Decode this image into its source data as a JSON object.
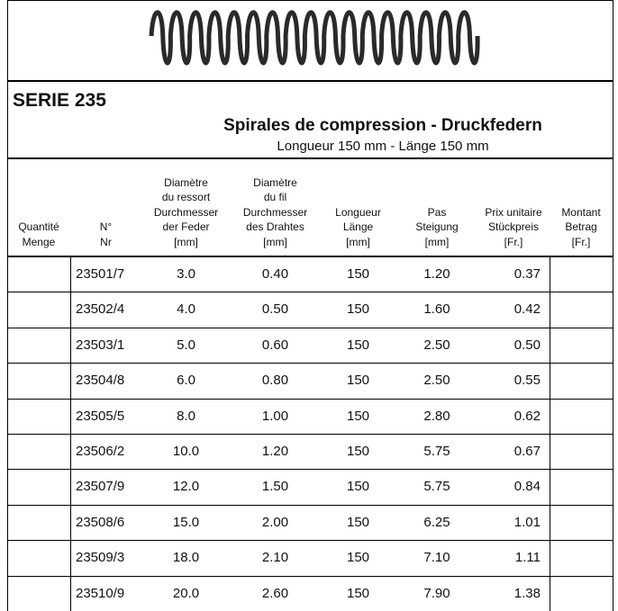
{
  "header": {
    "serie": "SERIE 235",
    "title": "Spirales de compression - Druckfedern",
    "subtitle": "Longueur 150 mm - Länge 150 mm"
  },
  "table": {
    "columns": [
      [
        "Quantité",
        "Menge"
      ],
      [
        "N°",
        "Nr"
      ],
      [
        "Diamètre",
        "du ressort",
        "Durchmesser",
        "der Feder",
        "[mm]"
      ],
      [
        "Diamètre",
        "du fil",
        "Durchmesser",
        "des Drahtes",
        "[mm]"
      ],
      [
        "Longueur",
        "Länge",
        "[mm]"
      ],
      [
        "Pas",
        "Steigung",
        "[mm]"
      ],
      [
        "Prix unitaire",
        "Stückpreis",
        "[Fr.]"
      ],
      [
        "Montant",
        "Betrag",
        "[Fr.]"
      ]
    ],
    "rows": [
      [
        "23501/7",
        "3.0",
        "0.40",
        "150",
        "1.20",
        "0.37"
      ],
      [
        "23502/4",
        "4.0",
        "0.50",
        "150",
        "1.60",
        "0.42"
      ],
      [
        "23503/1",
        "5.0",
        "0.60",
        "150",
        "2.50",
        "0.50"
      ],
      [
        "23504/8",
        "6.0",
        "0.80",
        "150",
        "2.50",
        "0.55"
      ],
      [
        "23505/5",
        "8.0",
        "1.00",
        "150",
        "2.80",
        "0.62"
      ],
      [
        "23506/2",
        "10.0",
        "1.20",
        "150",
        "5.75",
        "0.67"
      ],
      [
        "23507/9",
        "12.0",
        "1.50",
        "150",
        "5.75",
        "0.84"
      ],
      [
        "23508/6",
        "15.0",
        "2.00",
        "150",
        "6.25",
        "1.01"
      ],
      [
        "23509/3",
        "18.0",
        "2.10",
        "150",
        "7.10",
        "1.11"
      ],
      [
        "23510/9",
        "20.0",
        "2.60",
        "150",
        "7.90",
        "1.38"
      ]
    ]
  }
}
